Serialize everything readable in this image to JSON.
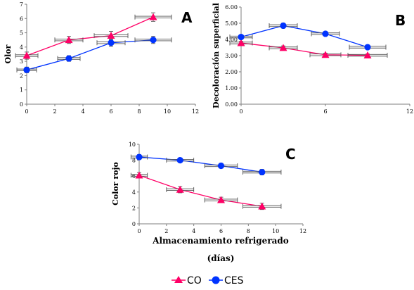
{
  "chart_data": [
    {
      "type": "line",
      "panel": "A",
      "xlabel": "",
      "ylabel": "Olor",
      "xlim": [
        0,
        12
      ],
      "ylim": [
        0,
        7
      ],
      "x_ticks": [
        "0",
        "2",
        "4",
        "6",
        "8",
        "10",
        "12"
      ],
      "y_ticks": [
        "0",
        "1",
        "2",
        "3",
        "4",
        "5",
        "6",
        "7"
      ],
      "series": [
        {
          "name": "CO",
          "marker": "triangle",
          "color": "#ff0066",
          "x": [
            0,
            3,
            6,
            9
          ],
          "y": [
            3.4,
            4.5,
            4.8,
            6.1
          ],
          "y_err": [
            0.25,
            0.25,
            0.3,
            0.3
          ],
          "x_err": [
            0.8,
            1.0,
            1.2,
            1.3
          ]
        },
        {
          "name": "CES",
          "marker": "circle",
          "color": "#0033ff",
          "x": [
            0,
            3,
            6,
            9
          ],
          "y": [
            2.4,
            3.2,
            4.3,
            4.5
          ],
          "y_err": [
            0.2,
            0.2,
            0.25,
            0.25
          ],
          "x_err": [
            0.7,
            0.8,
            1.0,
            1.3
          ]
        }
      ]
    },
    {
      "type": "line",
      "panel": "B",
      "xlabel": "",
      "ylabel": "Decoloración superficial",
      "xlim": [
        0,
        12
      ],
      "ylim": [
        0,
        6
      ],
      "x_ticks": [
        "0",
        "6",
        "12"
      ],
      "y_ticks": [
        "0.00",
        "1.00",
        "2.00",
        "3.00",
        "4.00",
        "5.00",
        "6.00"
      ],
      "series": [
        {
          "name": "CO",
          "marker": "triangle",
          "color": "#ff0066",
          "x": [
            0,
            3,
            6,
            9
          ],
          "y": [
            3.78,
            3.48,
            3.05,
            3.02
          ],
          "y_err": [
            0.1,
            0.12,
            0.1,
            0.08
          ],
          "x_err": [
            0.8,
            1.0,
            1.1,
            1.4
          ]
        },
        {
          "name": "CES",
          "marker": "circle",
          "color": "#0033ff",
          "x": [
            0,
            3,
            6,
            9
          ],
          "y": [
            4.15,
            4.85,
            4.35,
            3.52
          ],
          "y_err": [
            0.1,
            0.15,
            0.1,
            0.1
          ],
          "x_err": [
            0.8,
            1.0,
            1.0,
            1.3
          ]
        }
      ]
    },
    {
      "type": "line",
      "panel": "C",
      "xlabel": "Almacenamiento refrigerado (días)",
      "ylabel": "Color rojo",
      "xlim": [
        0,
        12
      ],
      "ylim": [
        0,
        10
      ],
      "x_ticks": [
        "0",
        "2",
        "4",
        "6",
        "8",
        "10",
        "12"
      ],
      "y_ticks": [
        "0",
        "2",
        "4",
        "6",
        "8",
        "10"
      ],
      "series": [
        {
          "name": "CO",
          "marker": "triangle",
          "color": "#ff0066",
          "x": [
            0,
            3,
            6,
            9
          ],
          "y": [
            6.1,
            4.3,
            3.0,
            2.2
          ],
          "y_err": [
            0.35,
            0.4,
            0.35,
            0.4
          ],
          "x_err": [
            0.6,
            1.0,
            1.2,
            1.4
          ]
        },
        {
          "name": "CES",
          "marker": "circle",
          "color": "#0033ff",
          "x": [
            0,
            3,
            6,
            9
          ],
          "y": [
            8.4,
            8.0,
            7.3,
            6.5
          ],
          "y_err": [
            0.3,
            0.25,
            0.3,
            0.35
          ],
          "x_err": [
            0.6,
            1.0,
            1.2,
            1.4
          ]
        }
      ]
    }
  ],
  "legend": {
    "placement": "bottom-center",
    "items": [
      {
        "label": "CO",
        "marker": "triangle",
        "color": "#ff0066"
      },
      {
        "label": "CES",
        "marker": "circle",
        "color": "#0033ff"
      }
    ]
  }
}
